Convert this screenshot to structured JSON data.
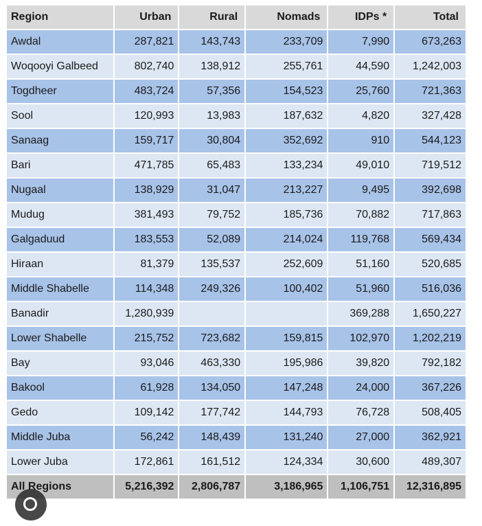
{
  "table": {
    "header": [
      "Region",
      "Urban",
      "Rural",
      "Nomads",
      "IDPs *",
      "Total"
    ],
    "rows": [
      [
        "Awdal",
        "287,821",
        "143,743",
        "233,709",
        "7,990",
        "673,263"
      ],
      [
        "Woqooyi Galbeed",
        "802,740",
        "138,912",
        "255,761",
        "44,590",
        "1,242,003"
      ],
      [
        "Togdheer",
        "483,724",
        "57,356",
        "154,523",
        "25,760",
        "721,363"
      ],
      [
        "Sool",
        "120,993",
        "13,983",
        "187,632",
        "4,820",
        "327,428"
      ],
      [
        "Sanaag",
        "159,717",
        "30,804",
        "352,692",
        "910",
        "544,123"
      ],
      [
        "Bari",
        "471,785",
        "65,483",
        "133,234",
        "49,010",
        "719,512"
      ],
      [
        "Nugaal",
        "138,929",
        "31,047",
        "213,227",
        "9,495",
        "392,698"
      ],
      [
        "Mudug",
        "381,493",
        "79,752",
        "185,736",
        "70,882",
        "717,863"
      ],
      [
        "Galgaduud",
        "183,553",
        "52,089",
        "214,024",
        "119,768",
        "569,434"
      ],
      [
        "Hiraan",
        "81,379",
        "135,537",
        "252,609",
        "51,160",
        "520,685"
      ],
      [
        "Middle Shabelle",
        "114,348",
        "249,326",
        "100,402",
        "51,960",
        "516,036"
      ],
      [
        "Banadir",
        "1,280,939",
        null,
        null,
        "369,288",
        "1,650,227"
      ],
      [
        "Lower Shabelle",
        "215,752",
        "723,682",
        "159,815",
        "102,970",
        "1,202,219"
      ],
      [
        "Bay",
        "93,046",
        "463,330",
        "195,986",
        "39,820",
        "792,182"
      ],
      [
        "Bakool",
        "61,928",
        "134,050",
        "147,248",
        "24,000",
        "367,226"
      ],
      [
        "Gedo",
        "109,142",
        "177,742",
        "144,793",
        "76,728",
        "508,405"
      ],
      [
        "Middle Juba",
        "56,242",
        "148,439",
        "131,240",
        "27,000",
        "362,921"
      ],
      [
        "Lower Juba",
        "172,861",
        "161,512",
        "124,334",
        "30,600",
        "489,307"
      ]
    ],
    "total": [
      "All Regions",
      "5,216,392",
      "2,806,787",
      "3,186,965",
      "1,106,751",
      "12,316,895"
    ]
  }
}
